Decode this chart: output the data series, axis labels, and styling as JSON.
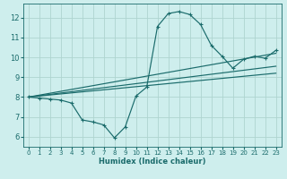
{
  "xlabel": "Humidex (Indice chaleur)",
  "bg_color": "#ceeeed",
  "grid_color": "#aed4d0",
  "line_color": "#1a6b6b",
  "xlim": [
    -0.5,
    23.5
  ],
  "ylim": [
    5.5,
    12.7
  ],
  "xticks": [
    0,
    1,
    2,
    3,
    4,
    5,
    6,
    7,
    8,
    9,
    10,
    11,
    12,
    13,
    14,
    15,
    16,
    17,
    18,
    19,
    20,
    21,
    22,
    23
  ],
  "yticks": [
    6,
    7,
    8,
    9,
    10,
    11,
    12
  ],
  "curve1_x": [
    0,
    1,
    2,
    3,
    4,
    5,
    6,
    7,
    8,
    9,
    10,
    11,
    12,
    13,
    14,
    15,
    16,
    17,
    18,
    19,
    20,
    21,
    22,
    23
  ],
  "curve1_y": [
    8.0,
    7.95,
    7.9,
    7.85,
    7.7,
    6.85,
    6.75,
    6.6,
    5.95,
    6.5,
    8.05,
    8.5,
    11.55,
    12.2,
    12.3,
    12.15,
    11.65,
    10.6,
    10.05,
    9.45,
    9.9,
    10.05,
    9.95,
    10.35
  ],
  "line1_x": [
    0,
    23
  ],
  "line1_y": [
    8.0,
    9.2
  ],
  "line2_x": [
    0,
    23
  ],
  "line2_y": [
    8.0,
    9.55
  ],
  "line3_x": [
    0,
    23
  ],
  "line3_y": [
    8.0,
    10.2
  ]
}
